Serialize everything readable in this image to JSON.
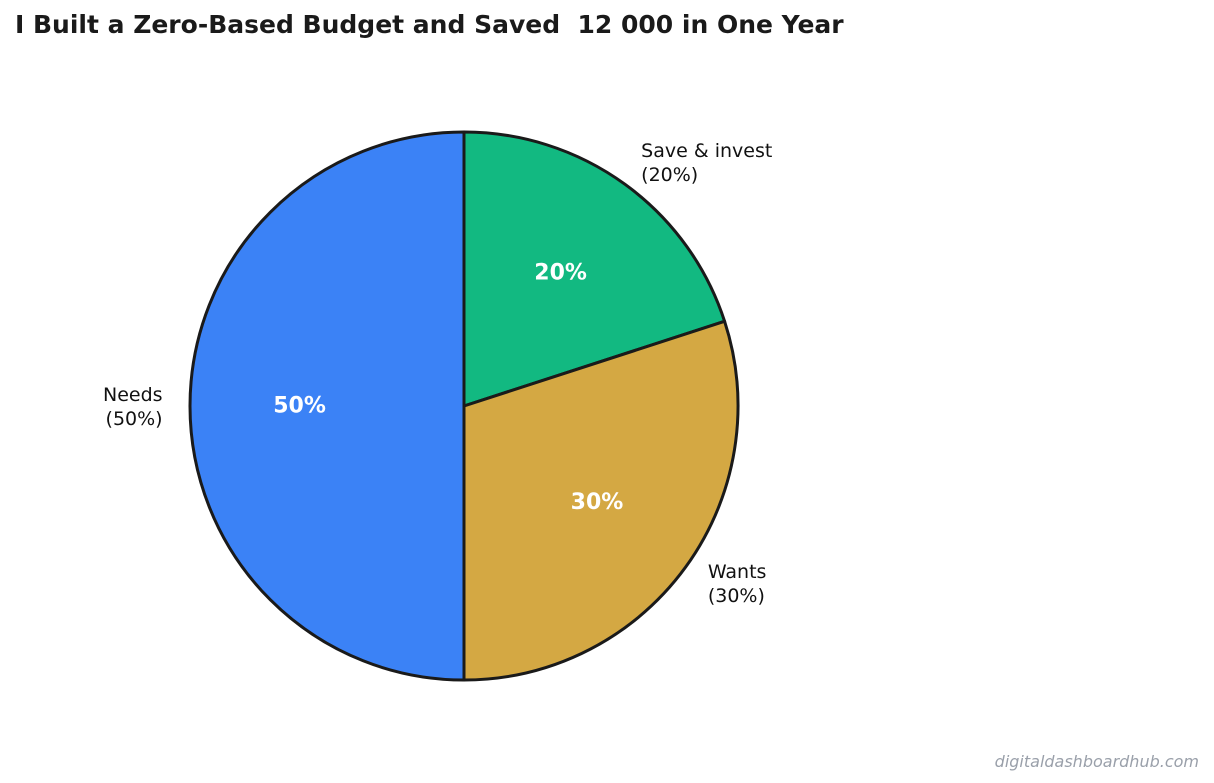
{
  "title": "I Built a Zero-Based Budget and Saved  12 000 in One Year",
  "watermark": "digitaldashboardhub.com",
  "chart_data": {
    "type": "pie",
    "title": "I Built a Zero-Based Budget and Saved  12 000 in One Year",
    "start_angle_deg": 90,
    "direction": "clockwise",
    "slices": [
      {
        "label": "Save & invest",
        "label_line2": "(20%)",
        "value": 20,
        "pct_label": "20%",
        "color": "#12b981"
      },
      {
        "label": "Wants",
        "label_line2": "(30%)",
        "value": 30,
        "pct_label": "30%",
        "color": "#d4a843"
      },
      {
        "label": "Needs",
        "label_line2": "(50%)",
        "value": 50,
        "pct_label": "50%",
        "color": "#3b82f6"
      }
    ],
    "edge_color": "#1a1a1a"
  }
}
